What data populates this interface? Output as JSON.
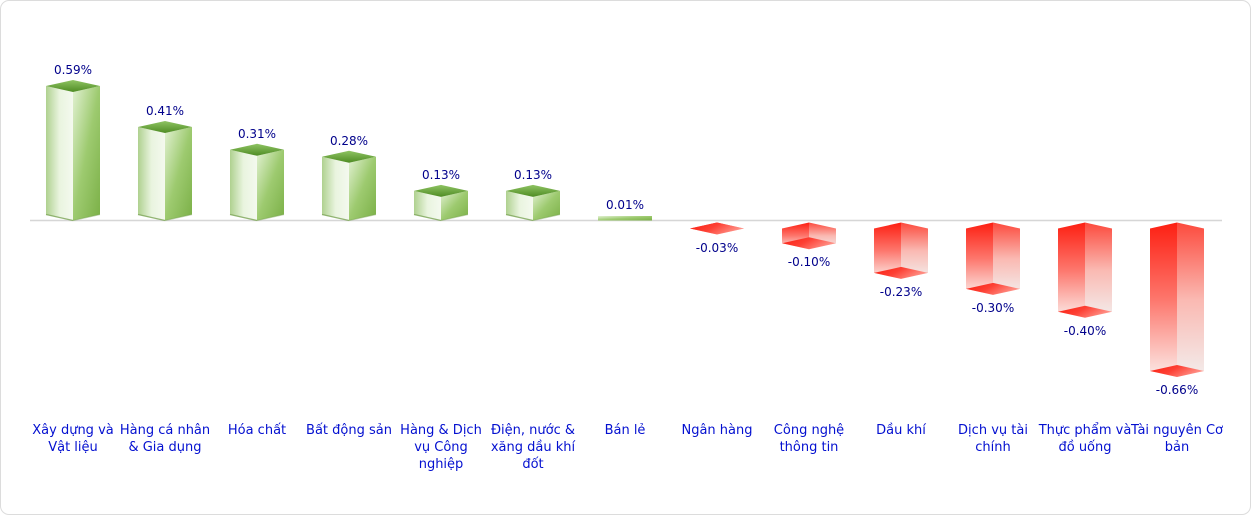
{
  "chart_data": {
    "type": "bar",
    "title": "",
    "subtitle": "",
    "unit": "%",
    "orientation": "vertical-3d",
    "categories": [
      "Xây dựng và Vật liệu",
      "Hàng cá nhân & Gia dụng",
      "Hóa chất",
      "Bất động sản",
      "Hàng & Dịch vụ Công nghiệp",
      "Điện, nước & xăng dầu khí đốt",
      "Bán lẻ",
      "Ngân hàng",
      "Công nghệ thông tin",
      "Dầu khí",
      "Dịch vụ tài chính",
      "Thực phẩm và đồ uống",
      "Tài nguyên Cơ bản"
    ],
    "values": [
      0.59,
      0.41,
      0.31,
      0.28,
      0.13,
      0.13,
      0.01,
      -0.03,
      -0.1,
      -0.23,
      -0.3,
      -0.4,
      -0.66
    ],
    "value_labels": [
      "0.59%",
      "0.41%",
      "0.31%",
      "0.28%",
      "0.13%",
      "0.13%",
      "0.01%",
      "-0.03%",
      "-0.10%",
      "-0.23%",
      "-0.30%",
      "-0.40%",
      "-0.66%"
    ],
    "axis": {
      "baseline_value": 0,
      "y_axis_visible": false,
      "x_axis_visible": true,
      "gridlines": false,
      "ylim": [
        -0.7,
        0.65
      ]
    },
    "legend": {
      "visible": false
    },
    "colors": {
      "positive_top": [
        "#8fc463",
        "#4f8c24"
      ],
      "positive_left": [
        "#afd18f",
        "#e9f4df",
        "#f4f9ef"
      ],
      "positive_right": [
        "#e2f1d3",
        "#9dca6f",
        "#7bb047"
      ],
      "negative_left": [
        "#fd1f12",
        "#fd776d",
        "#fbeae7"
      ],
      "negative_right": [
        "#fc4a3d",
        "#fab9b2",
        "#f3edec"
      ],
      "negative_bottom": [
        "#fc1c0f",
        "#fd4034",
        "#ff948a"
      ],
      "positive_edge_shadow": "#79a254",
      "value_label": "#00008b",
      "category_label": "#0410d0",
      "baseline": "#d6d6d6",
      "border": "#dcdcdc",
      "background": "#ffffff"
    }
  }
}
